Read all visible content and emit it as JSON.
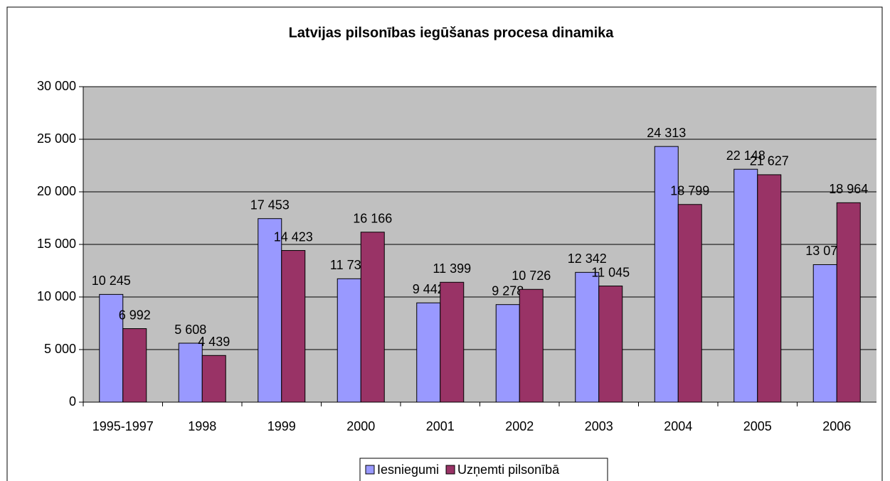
{
  "chart_data": {
    "type": "bar",
    "title": "Latvijas pilsonības iegūšanas procesa dinamika",
    "categories": [
      "1995-1997",
      "1998",
      "1999",
      "2000",
      "2001",
      "2002",
      "2003",
      "2004",
      "2005",
      "2006"
    ],
    "series": [
      {
        "name": "Iesniegumi",
        "color": "#9999ff",
        "values": [
          10245,
          5608,
          17453,
          11734,
          9442,
          9278,
          12342,
          24313,
          22148,
          13076
        ],
        "value_labels": [
          "10 245",
          "5 608",
          "17 453",
          "11 734",
          "9 442",
          "9 278",
          "12 342",
          "24 313",
          "22 148",
          "13 076"
        ]
      },
      {
        "name": "Uzņemti pilsonībā",
        "color": "#993366",
        "values": [
          6992,
          4439,
          14423,
          16166,
          11399,
          10726,
          11045,
          18799,
          21627,
          18964
        ],
        "value_labels": [
          "6 992",
          "4 439",
          "14 423",
          "16 166",
          "11 399",
          "10 726",
          "11 045",
          "18 799",
          "21 627",
          "18 964"
        ]
      }
    ],
    "ylim": [
      0,
      30000
    ],
    "yticks": [
      0,
      {
        "value": 5000,
        "label": "5 000"
      },
      {
        "value": 10000,
        "label": "10 000"
      },
      {
        "value": 15000,
        "label": "15 000"
      },
      {
        "value": 20000,
        "label": "20 000"
      },
      {
        "value": 25000,
        "label": "25 000"
      },
      {
        "value": 30000,
        "label": "30 000"
      }
    ],
    "grid": true,
    "legend": "bottom"
  }
}
